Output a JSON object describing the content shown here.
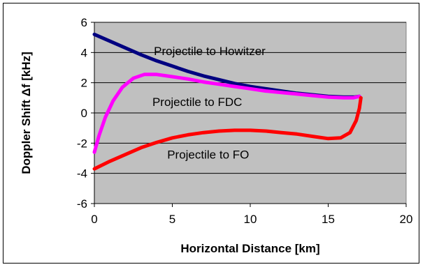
{
  "chart_data": {
    "type": "line",
    "xlabel": "Horizontal Distance [km]",
    "ylabel": "Doppler Shift Δf [kHz]",
    "xlim": [
      0,
      20
    ],
    "ylim": [
      -6,
      6
    ],
    "x_ticks": [
      0,
      5,
      10,
      15,
      20
    ],
    "y_ticks": [
      -6,
      -4,
      -2,
      0,
      2,
      4,
      6
    ],
    "grid": true,
    "legend": "none",
    "plot_background": "#c0c0c0",
    "series": [
      {
        "color": "#000080",
        "points": [
          [
            0,
            5.2
          ],
          [
            1,
            4.75
          ],
          [
            2,
            4.3
          ],
          [
            3,
            3.85
          ],
          [
            4,
            3.45
          ],
          [
            5,
            3.1
          ],
          [
            6,
            2.75
          ],
          [
            7,
            2.45
          ],
          [
            8,
            2.2
          ],
          [
            9,
            1.95
          ],
          [
            10,
            1.75
          ],
          [
            11,
            1.6
          ],
          [
            12,
            1.45
          ],
          [
            13,
            1.3
          ],
          [
            14,
            1.2
          ],
          [
            15,
            1.1
          ],
          [
            16,
            1.05
          ],
          [
            16.7,
            1.05
          ],
          [
            17,
            1.1
          ]
        ]
      },
      {
        "color": "#ff00ff",
        "points": [
          [
            0,
            -2.6
          ],
          [
            0.3,
            -1.5
          ],
          [
            0.7,
            -0.3
          ],
          [
            1.2,
            0.8
          ],
          [
            1.8,
            1.7
          ],
          [
            2.5,
            2.3
          ],
          [
            3.2,
            2.55
          ],
          [
            4,
            2.55
          ],
          [
            5,
            2.4
          ],
          [
            6,
            2.25
          ],
          [
            7,
            2.05
          ],
          [
            8,
            1.9
          ],
          [
            9,
            1.75
          ],
          [
            10,
            1.6
          ],
          [
            11,
            1.45
          ],
          [
            12,
            1.35
          ],
          [
            13,
            1.25
          ],
          [
            14,
            1.15
          ],
          [
            15,
            1.05
          ],
          [
            16,
            1.0
          ],
          [
            16.6,
            1.0
          ],
          [
            17,
            1.1
          ]
        ]
      },
      {
        "color": "#ff0000",
        "points": [
          [
            0,
            -3.7
          ],
          [
            1,
            -3.2
          ],
          [
            2,
            -2.75
          ],
          [
            3,
            -2.3
          ],
          [
            4,
            -1.95
          ],
          [
            5,
            -1.65
          ],
          [
            6,
            -1.45
          ],
          [
            7,
            -1.3
          ],
          [
            8,
            -1.2
          ],
          [
            9,
            -1.15
          ],
          [
            10,
            -1.15
          ],
          [
            11,
            -1.2
          ],
          [
            12,
            -1.3
          ],
          [
            13,
            -1.4
          ],
          [
            14,
            -1.55
          ],
          [
            15,
            -1.7
          ],
          [
            15.8,
            -1.65
          ],
          [
            16.4,
            -1.3
          ],
          [
            16.8,
            -0.5
          ],
          [
            17,
            0.3
          ],
          [
            17.1,
            1.0
          ]
        ]
      }
    ],
    "annotations": [
      {
        "text": "Projectile to Howitzer",
        "x": 7.4,
        "y": 4.1
      },
      {
        "text": "Projectile to FDC",
        "x": 6.6,
        "y": 0.75
      },
      {
        "text": "Projectile to FO",
        "x": 7.3,
        "y": -2.75
      }
    ]
  }
}
